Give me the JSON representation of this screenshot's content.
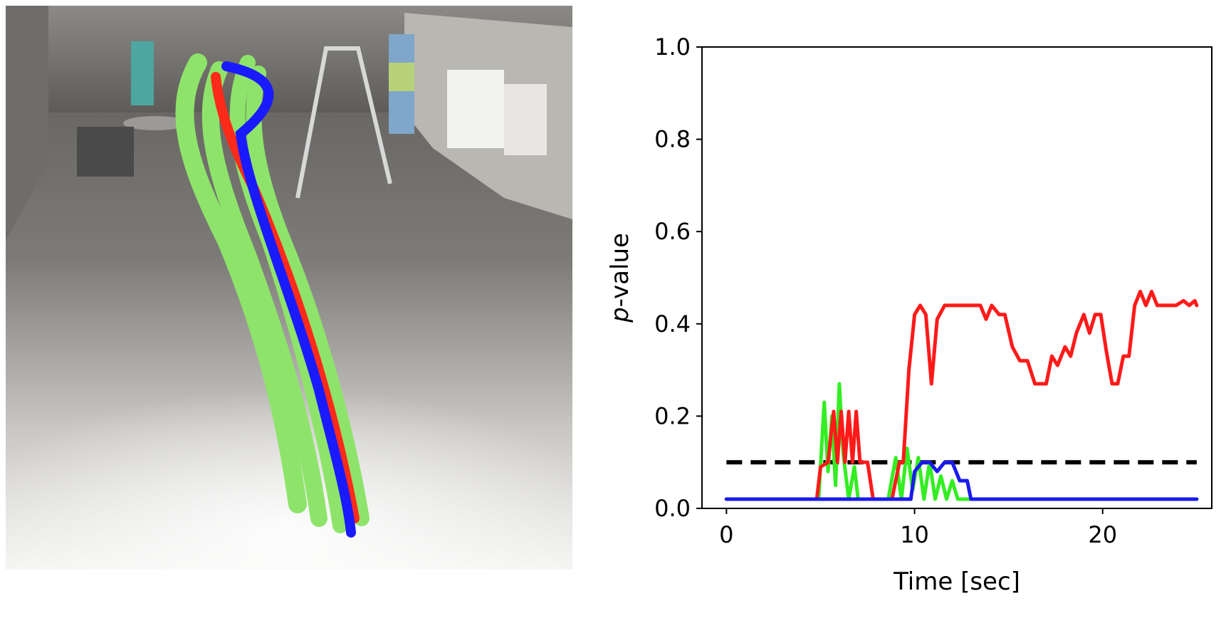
{
  "scene": {
    "description_icon": "warehouse-trajectory-render-icon",
    "trajectory_colors": {
      "predicted": "#7fe85a",
      "reference": "#ff2a1a",
      "alternate": "#1a1aff"
    }
  },
  "chart_data": {
    "type": "line",
    "title": "",
    "xlabel": "Time [sec]",
    "ylabel_italic": "p",
    "ylabel_rest": "-value",
    "xlim": [
      -1.3,
      25.8
    ],
    "ylim": [
      0.0,
      1.0
    ],
    "xticks": [
      0,
      10,
      20
    ],
    "xtick_labels": [
      "0",
      "10",
      "20"
    ],
    "yticks": [
      0.0,
      0.2,
      0.4,
      0.6,
      0.8,
      1.0
    ],
    "ytick_labels": [
      "0.0",
      "0.2",
      "0.4",
      "0.6",
      "0.8",
      "1.0"
    ],
    "grid": false,
    "threshold": {
      "y": 0.1,
      "x": [
        0,
        25
      ],
      "color": "#000000",
      "style": "dashed"
    },
    "series": [
      {
        "color": "#33ee22",
        "x": [
          0,
          4.9,
          5.2,
          5.4,
          5.6,
          5.8,
          6.0,
          6.2,
          6.5,
          6.8,
          7.0,
          8.6,
          9.0,
          9.3,
          9.6,
          9.9,
          10.2,
          10.5,
          10.8,
          11.1,
          11.4,
          11.7,
          12.0,
          12.3,
          25
        ],
        "y": [
          0.02,
          0.02,
          0.23,
          0.08,
          0.2,
          0.05,
          0.27,
          0.12,
          0.02,
          0.09,
          0.02,
          0.02,
          0.11,
          0.02,
          0.13,
          0.04,
          0.11,
          0.02,
          0.1,
          0.02,
          0.07,
          0.02,
          0.06,
          0.02,
          0.02
        ]
      },
      {
        "color": "#ff1a1a",
        "x": [
          0,
          4.8,
          5.0,
          5.4,
          5.7,
          5.9,
          6.1,
          6.3,
          6.5,
          6.7,
          6.9,
          7.1,
          7.5,
          7.8,
          8.8,
          9.2,
          9.4,
          9.7,
          10.0,
          10.3,
          10.6,
          10.9,
          11.2,
          11.6,
          12.0,
          13.5,
          13.8,
          14.1,
          14.5,
          14.8,
          15.2,
          15.6,
          16.0,
          16.4,
          16.6,
          17.0,
          17.3,
          17.6,
          18.0,
          18.3,
          18.6,
          19.0,
          19.3,
          19.6,
          19.9,
          20.2,
          20.5,
          20.8,
          21.1,
          21.4,
          21.7,
          22.0,
          22.3,
          22.6,
          22.9,
          23.2,
          23.5,
          23.9,
          24.3,
          24.6,
          24.9,
          25.0
        ],
        "y": [
          0.02,
          0.02,
          0.09,
          0.1,
          0.21,
          0.1,
          0.21,
          0.1,
          0.21,
          0.1,
          0.21,
          0.1,
          0.1,
          0.02,
          0.02,
          0.1,
          0.1,
          0.3,
          0.42,
          0.44,
          0.42,
          0.27,
          0.41,
          0.44,
          0.44,
          0.44,
          0.41,
          0.44,
          0.42,
          0.42,
          0.35,
          0.32,
          0.32,
          0.27,
          0.27,
          0.27,
          0.33,
          0.31,
          0.35,
          0.33,
          0.38,
          0.42,
          0.38,
          0.42,
          0.42,
          0.34,
          0.27,
          0.27,
          0.33,
          0.33,
          0.44,
          0.47,
          0.44,
          0.47,
          0.44,
          0.44,
          0.44,
          0.44,
          0.45,
          0.44,
          0.45,
          0.44
        ]
      },
      {
        "color": "#1a1aee",
        "x": [
          0,
          9.8,
          10.0,
          10.4,
          10.8,
          11.2,
          11.6,
          12.0,
          12.4,
          12.8,
          13.0,
          25
        ],
        "y": [
          0.02,
          0.02,
          0.08,
          0.1,
          0.1,
          0.08,
          0.1,
          0.1,
          0.06,
          0.06,
          0.02,
          0.02
        ]
      }
    ]
  }
}
